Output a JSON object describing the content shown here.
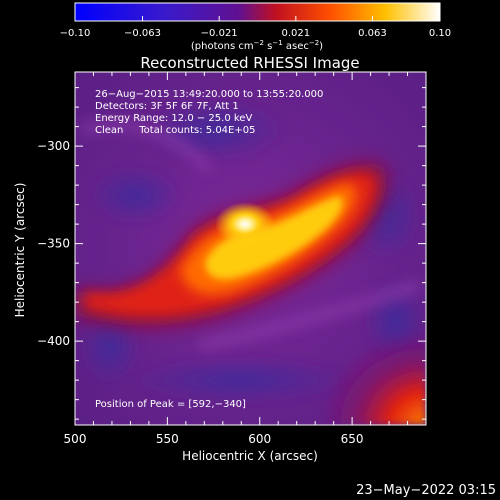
{
  "chart_data": {
    "type": "heatmap",
    "title": "Reconstructed RHESSI Image",
    "xlabel": "Heliocentric X (arcsec)",
    "ylabel": "Heliocentric Y (arcsec)",
    "xlim": [
      500,
      690
    ],
    "ylim": [
      -443,
      -262
    ],
    "x_ticks": [
      {
        "value": 500,
        "label": "500"
      },
      {
        "value": 550,
        "label": "550"
      },
      {
        "value": 600,
        "label": "600"
      },
      {
        "value": 650,
        "label": "650"
      }
    ],
    "y_ticks": [
      {
        "value": -300,
        "label": "−300"
      },
      {
        "value": -350,
        "label": "−350"
      },
      {
        "value": -400,
        "label": "−400"
      }
    ],
    "colorbar": {
      "range": [
        -0.1,
        0.1
      ],
      "tick_values": [
        -0.1,
        -0.063,
        -0.021,
        0.021,
        0.063,
        0.1
      ],
      "tick_labels": [
        "−0.10",
        "−0.063",
        "−0.021",
        "0.021",
        "0.063",
        "0.10"
      ],
      "unit_main": "(photons cm",
      "unit_sup1": "−2",
      "unit_mid1": " s",
      "unit_sup2": "−1",
      "unit_mid2": " asec",
      "unit_sup3": "−2",
      "unit_end": ")"
    },
    "annotations": [
      "26−Aug−2015 13:49:20.000 to 13:55:20.000",
      "Detectors: 3F 5F 6F 7F, Att 1",
      "Energy Range: 12.0 − 25.0 keV",
      "Clean     Total counts: 5.04E+05"
    ],
    "peak_label": "Position of Peak = [592,−340]",
    "peak": [
      592,
      -340
    ],
    "grid": false
  },
  "timestamp": "23−May−2022 03:15"
}
